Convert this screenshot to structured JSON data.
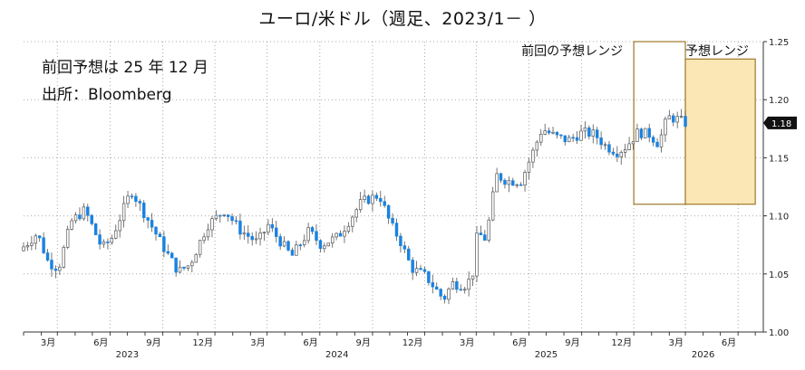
{
  "chart_data": {
    "type": "candlestick",
    "title": "ユーロ/米ドル（週足、2023/1－ ）",
    "notes": [
      "前回予想は 25 年 12 月",
      "出所：Bloomberg"
    ],
    "y_ticks": [
      "1.00",
      "1.05",
      "1.10",
      "1.15",
      "1.20",
      "1.25"
    ],
    "ylim": [
      1.0,
      1.25
    ],
    "grid": true,
    "x_months": [
      {
        "label": "3月",
        "date": "2023-03"
      },
      {
        "label": "6月",
        "date": "2023-06"
      },
      {
        "label": "9月",
        "date": "2023-09"
      },
      {
        "label": "12月",
        "date": "2023-12"
      },
      {
        "label": "3月",
        "date": "2024-03"
      },
      {
        "label": "6月",
        "date": "2024-06"
      },
      {
        "label": "9月",
        "date": "2024-09"
      },
      {
        "label": "12月",
        "date": "2024-12"
      },
      {
        "label": "3月",
        "date": "2025-03"
      },
      {
        "label": "6月",
        "date": "2025-06"
      },
      {
        "label": "9月",
        "date": "2025-09"
      },
      {
        "label": "12月",
        "date": "2025-12"
      },
      {
        "label": "3月",
        "date": "2026-03"
      },
      {
        "label": "6月",
        "date": "2026-06"
      }
    ],
    "x_years": [
      {
        "label": "2023",
        "date": "2023-07"
      },
      {
        "label": "2024",
        "date": "2024-07"
      },
      {
        "label": "2025",
        "date": "2025-07"
      },
      {
        "label": "2026",
        "date": "2026-04"
      }
    ],
    "last_value_label": "1.18",
    "previous_forecast_range": {
      "label": "前回の予想レンジ",
      "date_from": "2025-12",
      "date_to": "2026-03",
      "low": 1.11,
      "high": 1.25
    },
    "forecast_range": {
      "label": "予想レンジ",
      "date_from": "2026-03",
      "date_to": "2026-07",
      "low": 1.11,
      "high": 1.235
    },
    "close_path": [
      [
        "2023-01",
        1.07
      ],
      [
        "2023-02",
        1.085
      ],
      [
        "2023-02-20",
        1.06
      ],
      [
        "2023-03-10",
        1.055
      ],
      [
        "2023-04",
        1.095
      ],
      [
        "2023-04-25",
        1.105
      ],
      [
        "2023-05-25",
        1.072
      ],
      [
        "2023-06-10",
        1.08
      ],
      [
        "2023-07-15",
        1.122
      ],
      [
        "2023-08-15",
        1.095
      ],
      [
        "2023-09-15",
        1.068
      ],
      [
        "2023-10-05",
        1.052
      ],
      [
        "2023-10-25",
        1.058
      ],
      [
        "2023-11-25",
        1.092
      ],
      [
        "2023-12-25",
        1.105
      ],
      [
        "2024-01-20",
        1.088
      ],
      [
        "2024-02-20",
        1.077
      ],
      [
        "2024-03-10",
        1.092
      ],
      [
        "2024-03-28",
        1.08
      ],
      [
        "2024-04-20",
        1.065
      ],
      [
        "2024-05-20",
        1.087
      ],
      [
        "2024-06-10",
        1.075
      ],
      [
        "2024-07-10",
        1.082
      ],
      [
        "2024-08-20",
        1.112
      ],
      [
        "2024-09-20",
        1.118
      ],
      [
        "2024-10-10",
        1.092
      ],
      [
        "2024-10-25",
        1.08
      ],
      [
        "2024-11-15",
        1.055
      ],
      [
        "2024-12-10",
        1.048
      ],
      [
        "2025-01-10",
        1.028
      ],
      [
        "2025-01-25",
        1.042
      ],
      [
        "2025-02-15",
        1.04
      ],
      [
        "2025-03-01",
        1.047
      ],
      [
        "2025-03-10",
        1.085
      ],
      [
        "2025-03-25",
        1.08
      ],
      [
        "2025-04-12",
        1.135
      ],
      [
        "2025-05-01",
        1.13
      ],
      [
        "2025-05-25",
        1.13
      ],
      [
        "2025-06-15",
        1.155
      ],
      [
        "2025-07-01",
        1.175
      ],
      [
        "2025-07-25",
        1.168
      ],
      [
        "2025-08-15",
        1.165
      ],
      [
        "2025-09-10",
        1.172
      ],
      [
        "2025-10-01",
        1.17
      ],
      [
        "2025-10-20",
        1.16
      ],
      [
        "2025-11-10",
        1.155
      ],
      [
        "2025-11-25",
        1.16
      ],
      [
        "2025-12-15",
        1.172
      ],
      [
        "2026-01-05",
        1.17
      ],
      [
        "2026-01-20",
        1.162
      ],
      [
        "2026-02-05",
        1.185
      ],
      [
        "2026-02-25",
        1.183
      ],
      [
        "2026-03-05",
        1.18
      ]
    ],
    "colors": {
      "up": "#ffffff",
      "down": "#1a82e0",
      "outline": "#555555",
      "forecast_fill": "#fbe7b5",
      "forecast_border": "#a0782a",
      "grid": "#a9a9a9"
    }
  }
}
